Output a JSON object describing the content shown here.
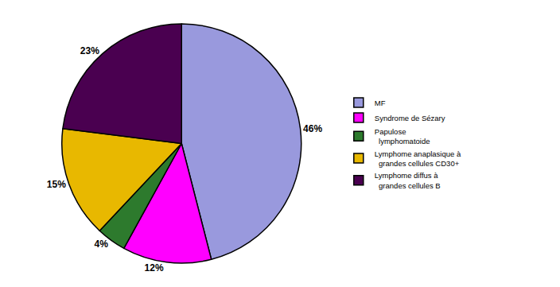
{
  "chart_data": {
    "type": "pie",
    "categories": [
      "MF",
      "Syndrome de Sézary",
      "Papulose\n  lymphomatoide",
      "Lymphome anaplasique à\n  grandes cellules CD30+",
      "Lymphome diffus à\n  grandes cellules B"
    ],
    "values": [
      46,
      12,
      4,
      15,
      23
    ],
    "value_labels": [
      "46%",
      "12%",
      "4%",
      "15%",
      "23%"
    ],
    "colors": [
      "#9999dd",
      "#ff00ff",
      "#2d7a2d",
      "#e8b800",
      "#4a0050"
    ],
    "data_labels": true,
    "legend": "right"
  }
}
